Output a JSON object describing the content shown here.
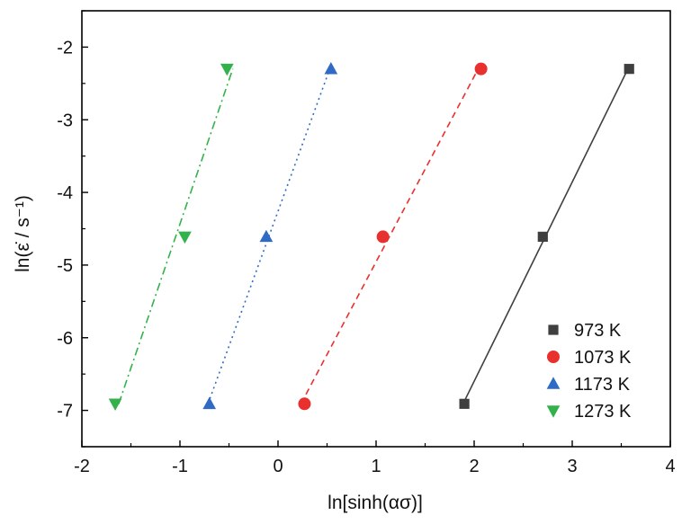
{
  "chart_data": {
    "type": "scatter",
    "xlabel": "ln[sinh(ασ)]",
    "ylabel": "ln(ε̇ / s⁻¹)",
    "xlim": [
      -2,
      4
    ],
    "ylim": [
      -7.5,
      -1.5
    ],
    "x_ticks": [
      -2,
      -1,
      0,
      1,
      2,
      3,
      4
    ],
    "y_ticks": [
      -2,
      -3,
      -4,
      -5,
      -6,
      -7
    ],
    "x_tick_labels": [
      "-2",
      "-1",
      "0",
      "1",
      "2",
      "3",
      "4"
    ],
    "y_tick_labels": [
      "-2",
      "-3",
      "-4",
      "-5",
      "-6",
      "-7"
    ],
    "grid": false,
    "legend_position": "bottom-right",
    "series": [
      {
        "name": "973 K",
        "color": "#3f3f3f",
        "marker": "square",
        "line_style": "solid",
        "x": [
          1.9,
          2.7,
          3.58
        ],
        "y": [
          -6.91,
          -4.61,
          -2.3
        ]
      },
      {
        "name": "1073 K",
        "color": "#e8302e",
        "marker": "circle",
        "line_style": "dashed",
        "x": [
          0.27,
          1.07,
          2.07
        ],
        "y": [
          -6.91,
          -4.61,
          -2.3
        ]
      },
      {
        "name": "1173 K",
        "color": "#2f6bc4",
        "marker": "triangle-up",
        "line_style": "dotted",
        "x": [
          -0.7,
          -0.12,
          0.54
        ],
        "y": [
          -6.91,
          -4.61,
          -2.3
        ]
      },
      {
        "name": "1273 K",
        "color": "#33b24c",
        "marker": "triangle-down",
        "line_style": "dash-dot",
        "x": [
          -1.66,
          -0.95,
          -0.52
        ],
        "y": [
          -6.91,
          -4.61,
          -2.3
        ]
      }
    ]
  }
}
